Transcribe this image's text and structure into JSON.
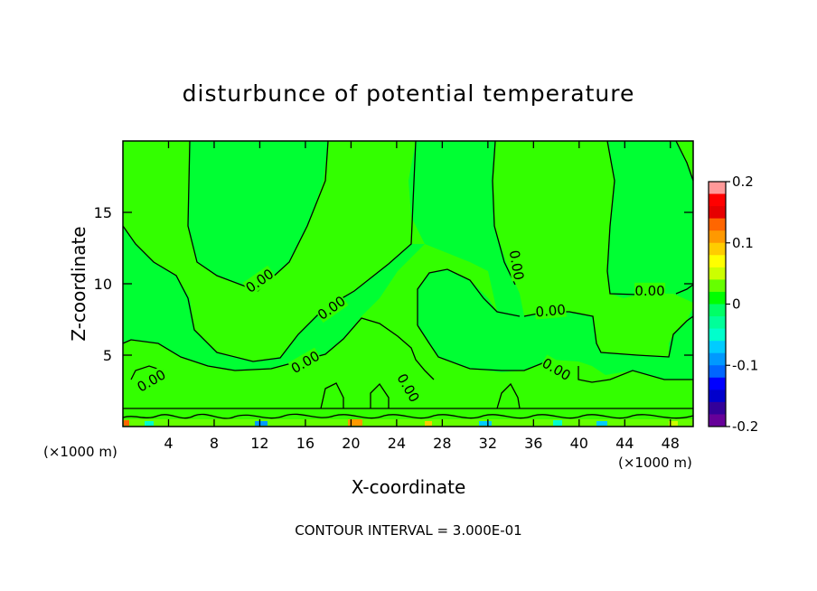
{
  "chart_data": {
    "type": "heatmap",
    "title": "disturbunce of potential temperature",
    "xlabel": "X-coordinate",
    "ylabel": "Z-coordinate",
    "x_unit_label": "(×1000 m)",
    "y_unit_label": "(×1000 m)",
    "xlim": [
      0,
      50
    ],
    "ylim": [
      0,
      20
    ],
    "x_ticks": [
      4,
      8,
      12,
      16,
      20,
      24,
      28,
      32,
      36,
      40,
      44,
      48
    ],
    "y_ticks": [
      5,
      10,
      15
    ],
    "colorbar": {
      "range": [
        -0.2,
        0.2
      ],
      "ticks": [
        "0.2",
        "0.1",
        "0",
        "-0.1",
        "-0.2"
      ],
      "colors": [
        "#ff9999",
        "#ff0000",
        "#e60000",
        "#ff6600",
        "#ff9900",
        "#ffcc00",
        "#ffff00",
        "#ccff00",
        "#66ff00",
        "#00ff00",
        "#00ff66",
        "#00ff99",
        "#00ffcc",
        "#00ccff",
        "#0099ff",
        "#0066ff",
        "#0000ff",
        "#0000cc",
        "#330099",
        "#660099"
      ]
    },
    "background_value": 0.0,
    "contour_labels": [
      {
        "text": "0.00",
        "x": 12.0,
        "z": 10.2
      },
      {
        "text": "0.00",
        "x": 18.3,
        "z": 8.3
      },
      {
        "text": "0.00",
        "x": 16.0,
        "z": 4.5
      },
      {
        "text": "0.00",
        "x": 2.5,
        "z": 3.2
      },
      {
        "text": "0.00",
        "x": 25.0,
        "z": 2.7
      },
      {
        "text": "0.00",
        "x": 34.5,
        "z": 11.3
      },
      {
        "text": "0.00",
        "x": 37.5,
        "z": 8.1
      },
      {
        "text": "0.00",
        "x": 38.0,
        "z": 4.0
      },
      {
        "text": "0.00",
        "x": 46.2,
        "z": 9.5
      }
    ],
    "footer": "CONTOUR INTERVAL = 3.000E-01"
  }
}
